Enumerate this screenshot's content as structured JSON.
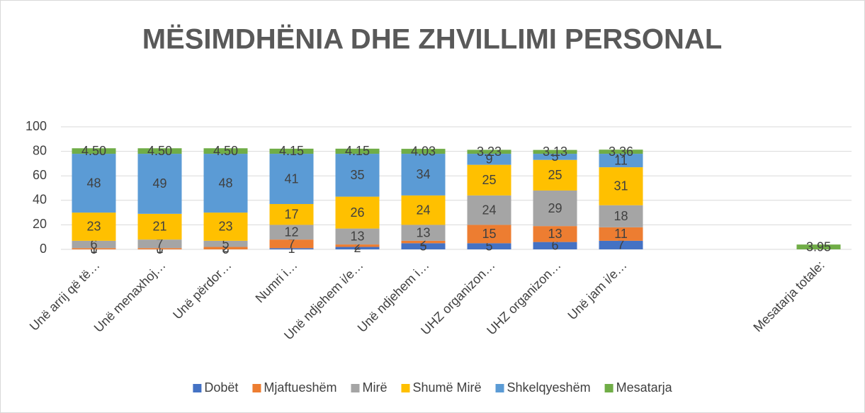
{
  "chart_data": {
    "type": "stacked_bar",
    "title": "MËSIMDHËNIA DHE ZHVILLIMI PERSONAL",
    "categories": [
      "Unë arrij që të…",
      "Unë menaxhoj…",
      "Unë përdor…",
      "Numri i…",
      "Unë ndjehem i/e…",
      "Unë ndjehem i…",
      "UHZ organizon…",
      "UHZ organizon…",
      "Unë jam i/e…",
      null,
      null,
      "Mesatarja totale:"
    ],
    "series": [
      {
        "name": "Dobët",
        "color": "#4472c4",
        "values": [
          0,
          0,
          0,
          1,
          2,
          5,
          5,
          6,
          7,
          null,
          null,
          null
        ]
      },
      {
        "name": "Mjaftueshëm",
        "color": "#ed7d31",
        "values": [
          1,
          1,
          2,
          7,
          2,
          2,
          15,
          13,
          11,
          null,
          null,
          null
        ]
      },
      {
        "name": "Mirë",
        "color": "#a5a5a5",
        "values": [
          6,
          7,
          5,
          12,
          13,
          13,
          24,
          29,
          18,
          null,
          null,
          null
        ]
      },
      {
        "name": "Shumë Mirë",
        "color": "#ffc000",
        "values": [
          23,
          21,
          23,
          17,
          26,
          24,
          25,
          25,
          31,
          null,
          null,
          null
        ]
      },
      {
        "name": "Shkelqyeshëm",
        "color": "#5b9bd5",
        "values": [
          48,
          49,
          48,
          41,
          35,
          34,
          9,
          5,
          11,
          null,
          null,
          null
        ]
      },
      {
        "name": "Mesatarja",
        "color": "#70ad47",
        "values": [
          4.5,
          4.5,
          4.5,
          4.15,
          4.15,
          4.03,
          3.23,
          3.13,
          3.36,
          null,
          null,
          3.95
        ],
        "value_labels": [
          "4.50",
          "4.50",
          "4.50",
          "4.15",
          "4.15",
          "4.03",
          "3.23",
          "3.13",
          "3.36",
          null,
          null,
          "3.95"
        ]
      }
    ],
    "ylim": [
      0,
      100
    ],
    "yticks": [
      0,
      20,
      40,
      60,
      80,
      100
    ],
    "grid": true,
    "legend": "bottom"
  }
}
